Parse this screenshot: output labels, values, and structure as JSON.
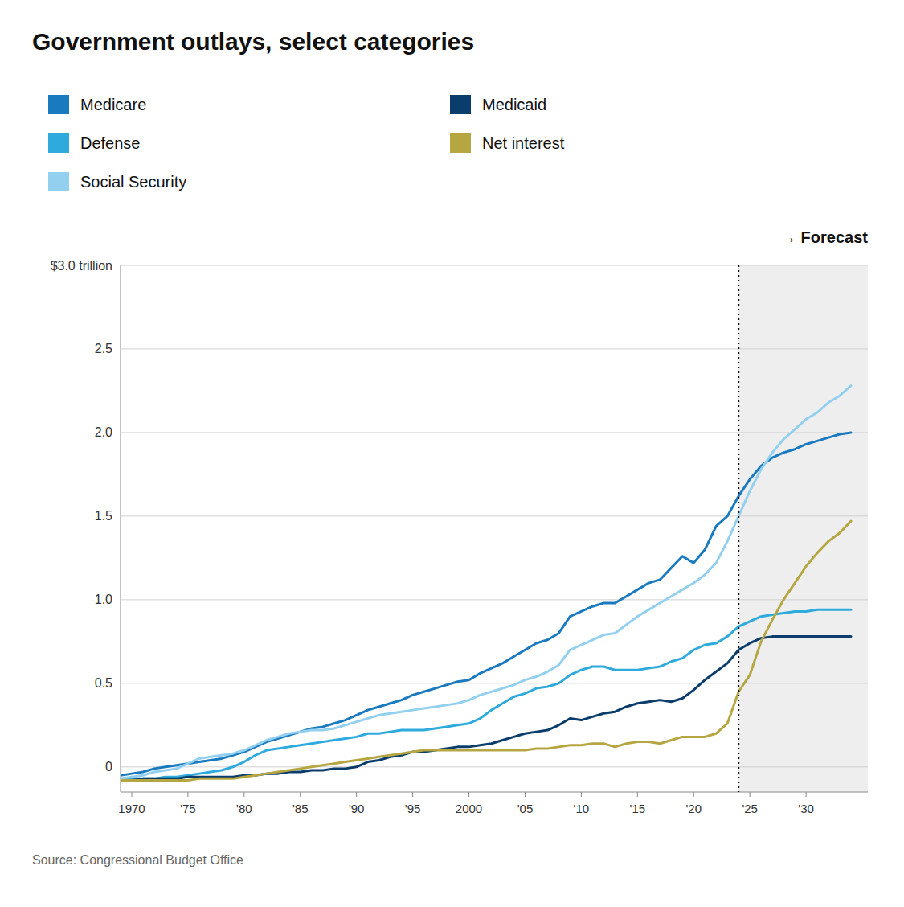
{
  "chart_data": {
    "type": "line",
    "title": "Government outlays, select categories",
    "source": "Source: Congressional Budget Office",
    "annotations": [
      {
        "text": "→ Forecast",
        "x": 2024,
        "color": "#eeeeee"
      }
    ],
    "x": [
      1969,
      1970,
      1971,
      1972,
      1973,
      1974,
      1975,
      1976,
      1977,
      1978,
      1979,
      1980,
      1981,
      1982,
      1983,
      1984,
      1985,
      1986,
      1987,
      1988,
      1989,
      1990,
      1991,
      1992,
      1993,
      1994,
      1995,
      1996,
      1997,
      1998,
      1999,
      2000,
      2001,
      2002,
      2003,
      2004,
      2005,
      2006,
      2007,
      2008,
      2009,
      2010,
      2011,
      2012,
      2013,
      2014,
      2015,
      2016,
      2017,
      2018,
      2019,
      2020,
      2021,
      2022,
      2023,
      2024,
      2025,
      2026,
      2027,
      2028,
      2029,
      2030,
      2031,
      2032,
      2033,
      2034
    ],
    "series": [
      {
        "name": "Medicare",
        "color": "#1a7abf",
        "values": [
          -0.05,
          -0.04,
          -0.03,
          -0.01,
          0.0,
          0.01,
          0.02,
          0.03,
          0.04,
          0.05,
          0.07,
          0.09,
          0.12,
          0.15,
          0.17,
          0.19,
          0.21,
          0.23,
          0.24,
          0.26,
          0.28,
          0.31,
          0.34,
          0.36,
          0.38,
          0.4,
          0.43,
          0.45,
          0.47,
          0.49,
          0.51,
          0.52,
          0.56,
          0.59,
          0.62,
          0.66,
          0.7,
          0.74,
          0.76,
          0.8,
          0.9,
          0.93,
          0.96,
          0.98,
          0.98,
          1.02,
          1.06,
          1.1,
          1.12,
          1.19,
          1.26,
          1.22,
          1.3,
          1.44,
          1.5,
          1.62,
          1.72,
          1.8,
          1.85,
          1.88,
          1.9,
          1.93,
          1.95,
          1.97,
          1.99,
          2.0
        ]
      },
      {
        "name": "Defense",
        "color": "#2eaadc",
        "values": [
          -0.07,
          -0.07,
          -0.07,
          -0.07,
          -0.06,
          -0.06,
          -0.05,
          -0.04,
          -0.03,
          -0.02,
          0.0,
          0.03,
          0.07,
          0.1,
          0.11,
          0.12,
          0.13,
          0.14,
          0.15,
          0.16,
          0.17,
          0.18,
          0.2,
          0.2,
          0.21,
          0.22,
          0.22,
          0.22,
          0.23,
          0.24,
          0.25,
          0.26,
          0.29,
          0.34,
          0.38,
          0.42,
          0.44,
          0.47,
          0.48,
          0.5,
          0.55,
          0.58,
          0.6,
          0.6,
          0.58,
          0.58,
          0.58,
          0.59,
          0.6,
          0.63,
          0.65,
          0.7,
          0.73,
          0.74,
          0.78,
          0.84,
          0.87,
          0.9,
          0.91,
          0.92,
          0.93,
          0.93,
          0.94,
          0.94,
          0.94,
          0.94
        ]
      },
      {
        "name": "Social Security",
        "color": "#93d0f0",
        "values": [
          -0.07,
          -0.06,
          -0.05,
          -0.03,
          -0.02,
          -0.01,
          0.02,
          0.05,
          0.06,
          0.07,
          0.08,
          0.1,
          0.13,
          0.16,
          0.18,
          0.2,
          0.21,
          0.22,
          0.22,
          0.23,
          0.25,
          0.27,
          0.29,
          0.31,
          0.32,
          0.33,
          0.34,
          0.35,
          0.36,
          0.37,
          0.38,
          0.4,
          0.43,
          0.45,
          0.47,
          0.49,
          0.52,
          0.54,
          0.57,
          0.61,
          0.7,
          0.73,
          0.76,
          0.79,
          0.8,
          0.85,
          0.9,
          0.94,
          0.98,
          1.02,
          1.06,
          1.1,
          1.15,
          1.22,
          1.35,
          1.5,
          1.65,
          1.78,
          1.88,
          1.96,
          2.02,
          2.08,
          2.12,
          2.18,
          2.22,
          2.28
        ]
      },
      {
        "name": "Medicaid",
        "color": "#0a3d6b",
        "values": [
          -0.08,
          -0.08,
          -0.07,
          -0.07,
          -0.07,
          -0.07,
          -0.06,
          -0.06,
          -0.06,
          -0.06,
          -0.06,
          -0.05,
          -0.05,
          -0.04,
          -0.04,
          -0.03,
          -0.03,
          -0.02,
          -0.02,
          -0.01,
          -0.01,
          0.0,
          0.03,
          0.04,
          0.06,
          0.07,
          0.09,
          0.09,
          0.1,
          0.11,
          0.12,
          0.12,
          0.13,
          0.14,
          0.16,
          0.18,
          0.2,
          0.21,
          0.22,
          0.25,
          0.29,
          0.28,
          0.3,
          0.32,
          0.33,
          0.36,
          0.38,
          0.39,
          0.4,
          0.39,
          0.41,
          0.46,
          0.52,
          0.57,
          0.62,
          0.7,
          0.74,
          0.77,
          0.78,
          0.78,
          0.78,
          0.78,
          0.78,
          0.78,
          0.78,
          0.78
        ]
      },
      {
        "name": "Net interest",
        "color": "#b5a642",
        "values": [
          -0.08,
          -0.08,
          -0.08,
          -0.08,
          -0.08,
          -0.08,
          -0.08,
          -0.07,
          -0.07,
          -0.07,
          -0.07,
          -0.06,
          -0.05,
          -0.04,
          -0.03,
          -0.02,
          -0.01,
          0.0,
          0.01,
          0.02,
          0.03,
          0.04,
          0.05,
          0.06,
          0.07,
          0.08,
          0.09,
          0.1,
          0.1,
          0.1,
          0.1,
          0.1,
          0.1,
          0.1,
          0.1,
          0.1,
          0.1,
          0.11,
          0.11,
          0.12,
          0.13,
          0.13,
          0.14,
          0.14,
          0.12,
          0.14,
          0.15,
          0.15,
          0.14,
          0.16,
          0.18,
          0.18,
          0.18,
          0.2,
          0.26,
          0.45,
          0.55,
          0.75,
          0.88,
          1.0,
          1.1,
          1.2,
          1.28,
          1.35,
          1.4,
          1.47
        ]
      }
    ],
    "xlim": [
      1969,
      2035.5
    ],
    "ylim": [
      -0.15,
      3.0
    ],
    "xticks": [
      1970,
      {
        "value": 1975,
        "label": "'75"
      },
      {
        "value": 1980,
        "label": "'80"
      },
      {
        "value": 1985,
        "label": "'85"
      },
      {
        "value": 1990,
        "label": "'90"
      },
      {
        "value": 1995,
        "label": "'95"
      },
      2000,
      {
        "value": 2005,
        "label": "'05"
      },
      {
        "value": 2010,
        "label": "'10"
      },
      {
        "value": 2015,
        "label": "'15"
      },
      {
        "value": 2020,
        "label": "'20"
      },
      {
        "value": 2025,
        "label": "'25"
      },
      {
        "value": 2030,
        "label": "'30"
      }
    ],
    "yticks": [
      0,
      0.5,
      {
        "value": 1,
        "label": "1.0"
      },
      1.5,
      {
        "value": 2,
        "label": "2.0"
      },
      2.5,
      {
        "value": 3,
        "label": "$3.0 trillion"
      }
    ],
    "grid": true,
    "legend": "top"
  }
}
